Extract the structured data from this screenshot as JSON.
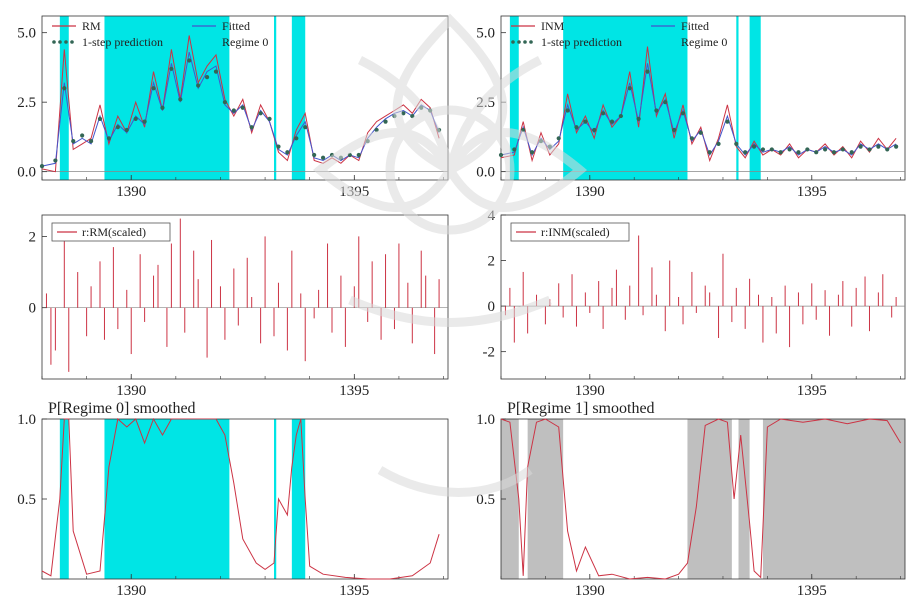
{
  "figure": {
    "colors": {
      "actual": "#cc3344",
      "fitted": "#4455cc",
      "prediction": "#336655",
      "regime_shade": "#00e5e5",
      "regime1_shade": "#bfbfbf",
      "residual": "#cc3344",
      "axis": "#333333"
    }
  },
  "chart_data": [
    {
      "id": "rm_fit",
      "type": "line",
      "legend": [
        "RM",
        "Fitted",
        "1-step prediction",
        "Regime 0"
      ],
      "legend_position": "top",
      "ylim": [
        -0.3,
        5.6
      ],
      "yticks": [
        "0.0",
        "2.5",
        "5.0"
      ],
      "xlim": [
        1388,
        1397.1
      ],
      "xticks": [
        "1390",
        "1395"
      ],
      "shaded_regime": 0,
      "regime_intervals": [
        [
          1388.4,
          1388.6
        ],
        [
          1389.4,
          1392.2
        ],
        [
          1393.2,
          1393.25
        ],
        [
          1393.6,
          1393.9
        ]
      ],
      "x": [
        1388.0,
        1388.3,
        1388.5,
        1388.7,
        1388.9,
        1389.1,
        1389.3,
        1389.5,
        1389.7,
        1389.9,
        1390.1,
        1390.3,
        1390.5,
        1390.7,
        1390.9,
        1391.1,
        1391.3,
        1391.5,
        1391.7,
        1391.9,
        1392.1,
        1392.3,
        1392.5,
        1392.7,
        1392.9,
        1393.1,
        1393.3,
        1393.5,
        1393.7,
        1393.9,
        1394.1,
        1394.3,
        1394.5,
        1394.7,
        1394.9,
        1395.1,
        1395.3,
        1395.5,
        1395.7,
        1395.9,
        1396.1,
        1396.3,
        1396.5,
        1396.7,
        1396.9
      ],
      "series": [
        {
          "name": "RM",
          "values": [
            0.1,
            0.0,
            4.4,
            0.8,
            1.0,
            1.2,
            2.4,
            1.0,
            2.0,
            1.4,
            2.5,
            1.6,
            3.6,
            2.2,
            4.4,
            2.6,
            4.9,
            3.2,
            3.8,
            4.2,
            2.6,
            2.0,
            2.6,
            1.4,
            2.4,
            1.8,
            0.7,
            0.4,
            1.5,
            2.1,
            0.4,
            0.3,
            0.5,
            0.3,
            0.6,
            0.4,
            1.4,
            1.8,
            2.0,
            2.2,
            2.4,
            2.1,
            2.6,
            2.3,
            1.2
          ]
        },
        {
          "name": "Fitted",
          "values": [
            0.2,
            0.3,
            3.2,
            1.0,
            1.2,
            1.0,
            2.0,
            1.1,
            1.7,
            1.4,
            2.0,
            1.7,
            3.2,
            2.2,
            3.9,
            2.5,
            4.3,
            3.0,
            3.6,
            3.8,
            2.4,
            2.1,
            2.4,
            1.5,
            2.2,
            1.8,
            0.8,
            0.6,
            1.3,
            1.8,
            0.5,
            0.4,
            0.6,
            0.4,
            0.6,
            0.5,
            1.2,
            1.6,
            1.9,
            2.1,
            2.2,
            2.0,
            2.4,
            2.2,
            1.4
          ]
        },
        {
          "name": "1-step prediction",
          "values": [
            0.2,
            0.4,
            3.0,
            1.1,
            1.3,
            1.1,
            1.9,
            1.2,
            1.6,
            1.5,
            1.9,
            1.8,
            3.0,
            2.3,
            3.7,
            2.6,
            4.0,
            3.1,
            3.4,
            3.6,
            2.5,
            2.2,
            2.3,
            1.6,
            2.1,
            1.9,
            0.9,
            0.7,
            1.2,
            1.6,
            0.6,
            0.5,
            0.6,
            0.5,
            0.6,
            0.6,
            1.1,
            1.5,
            1.8,
            2.0,
            2.1,
            2.0,
            2.3,
            2.2,
            1.5
          ]
        }
      ]
    },
    {
      "id": "inm_fit",
      "type": "line",
      "legend": [
        "INM",
        "Fitted",
        "1-step prediction",
        "Regime 0"
      ],
      "legend_position": "top",
      "ylim": [
        -0.3,
        5.6
      ],
      "yticks": [
        "0.0",
        "2.5",
        "5.0"
      ],
      "xlim": [
        1388,
        1397.1
      ],
      "xticks": [
        "1390",
        "1395"
      ],
      "shaded_regime": 0,
      "regime_intervals": [
        [
          1388.2,
          1388.4
        ],
        [
          1389.4,
          1392.2
        ],
        [
          1393.3,
          1393.35
        ],
        [
          1393.6,
          1393.85
        ]
      ],
      "x": [
        1388.0,
        1388.3,
        1388.5,
        1388.7,
        1388.9,
        1389.1,
        1389.3,
        1389.5,
        1389.7,
        1389.9,
        1390.1,
        1390.3,
        1390.5,
        1390.7,
        1390.9,
        1391.1,
        1391.3,
        1391.5,
        1391.7,
        1391.9,
        1392.1,
        1392.3,
        1392.5,
        1392.7,
        1392.9,
        1393.1,
        1393.3,
        1393.5,
        1393.7,
        1393.9,
        1394.1,
        1394.3,
        1394.5,
        1394.7,
        1394.9,
        1395.1,
        1395.3,
        1395.5,
        1395.7,
        1395.9,
        1396.1,
        1396.3,
        1396.5,
        1396.7,
        1396.9
      ],
      "series": [
        {
          "name": "INM",
          "values": [
            0.5,
            0.6,
            1.8,
            0.4,
            1.4,
            0.6,
            1.0,
            2.8,
            1.4,
            2.0,
            1.2,
            2.4,
            1.6,
            2.0,
            3.6,
            1.6,
            4.5,
            2.0,
            2.8,
            1.2,
            2.4,
            1.0,
            1.6,
            0.4,
            1.2,
            2.4,
            0.9,
            0.5,
            1.1,
            0.6,
            0.8,
            0.6,
            1.0,
            0.5,
            0.8,
            0.7,
            1.0,
            0.6,
            0.9,
            0.5,
            1.1,
            0.7,
            1.2,
            0.8,
            1.2
          ]
        },
        {
          "name": "Fitted",
          "values": [
            0.6,
            0.7,
            1.6,
            0.6,
            1.2,
            0.8,
            1.1,
            2.4,
            1.5,
            1.8,
            1.4,
            2.2,
            1.7,
            2.0,
            3.2,
            1.8,
            3.9,
            2.1,
            2.6,
            1.4,
            2.2,
            1.1,
            1.5,
            0.6,
            1.1,
            2.0,
            1.0,
            0.6,
            1.0,
            0.7,
            0.8,
            0.7,
            0.9,
            0.6,
            0.8,
            0.7,
            0.9,
            0.7,
            0.8,
            0.6,
            1.0,
            0.8,
            1.0,
            0.8,
            1.0
          ]
        },
        {
          "name": "1-step prediction",
          "values": [
            0.6,
            0.8,
            1.5,
            0.7,
            1.1,
            0.9,
            1.2,
            2.2,
            1.6,
            1.8,
            1.5,
            2.1,
            1.8,
            2.0,
            3.0,
            1.9,
            3.6,
            2.2,
            2.5,
            1.5,
            2.1,
            1.2,
            1.4,
            0.7,
            1.0,
            1.8,
            1.0,
            0.7,
            0.9,
            0.8,
            0.8,
            0.7,
            0.8,
            0.7,
            0.8,
            0.7,
            0.8,
            0.7,
            0.8,
            0.7,
            0.9,
            0.8,
            0.9,
            0.8,
            0.9
          ]
        }
      ]
    },
    {
      "id": "rm_resid",
      "type": "bar",
      "legend": [
        "r:RM(scaled)"
      ],
      "legend_position": "top-left",
      "ylim": [
        -2.0,
        2.6
      ],
      "yticks": [
        "0",
        "2"
      ],
      "xlim": [
        1388,
        1397.1
      ],
      "xticks": [
        "1390",
        "1395"
      ],
      "x": [
        1388.1,
        1388.2,
        1388.3,
        1388.5,
        1388.6,
        1388.8,
        1389.0,
        1389.1,
        1389.3,
        1389.4,
        1389.6,
        1389.7,
        1389.9,
        1390.0,
        1390.2,
        1390.3,
        1390.5,
        1390.6,
        1390.8,
        1390.9,
        1391.1,
        1391.2,
        1391.4,
        1391.5,
        1391.7,
        1391.8,
        1392.0,
        1392.1,
        1392.3,
        1392.4,
        1392.6,
        1392.7,
        1392.9,
        1393.0,
        1393.2,
        1393.3,
        1393.5,
        1393.6,
        1393.8,
        1393.9,
        1394.1,
        1394.2,
        1394.4,
        1394.5,
        1394.7,
        1394.8,
        1395.0,
        1395.1,
        1395.3,
        1395.4,
        1395.6,
        1395.7,
        1395.9,
        1396.0,
        1396.2,
        1396.3,
        1396.5,
        1396.6,
        1396.8,
        1396.9
      ],
      "values": [
        0.4,
        -1.6,
        -1.2,
        2.0,
        -1.8,
        1.0,
        -0.8,
        0.6,
        1.3,
        -0.9,
        1.7,
        -0.6,
        0.5,
        -1.3,
        1.5,
        -0.4,
        0.9,
        1.2,
        -1.1,
        1.8,
        2.5,
        -0.7,
        1.6,
        0.8,
        -1.4,
        1.9,
        0.6,
        -0.9,
        1.1,
        -0.5,
        1.4,
        0.3,
        -1.0,
        2.0,
        -0.8,
        0.7,
        -1.2,
        1.6,
        0.4,
        -1.5,
        -0.3,
        0.5,
        1.8,
        -0.7,
        0.9,
        -1.1,
        0.6,
        2.0,
        -0.4,
        1.3,
        -0.9,
        1.5,
        -0.6,
        1.8,
        0.7,
        -1.0,
        1.6,
        0.9,
        -1.3,
        0.8
      ]
    },
    {
      "id": "inm_resid",
      "type": "bar",
      "legend": [
        "r:INM(scaled)"
      ],
      "legend_position": "top-left",
      "ylim": [
        -3.2,
        4.0
      ],
      "yticks": [
        "-2",
        "0",
        "2",
        "4"
      ],
      "xlim": [
        1388,
        1397.1
      ],
      "xticks": [
        "1390",
        "1395"
      ],
      "x": [
        1388.1,
        1388.2,
        1388.3,
        1388.5,
        1388.6,
        1388.8,
        1389.0,
        1389.1,
        1389.3,
        1389.4,
        1389.6,
        1389.7,
        1389.9,
        1390.0,
        1390.2,
        1390.3,
        1390.5,
        1390.6,
        1390.8,
        1390.9,
        1391.1,
        1391.2,
        1391.4,
        1391.5,
        1391.7,
        1391.8,
        1392.0,
        1392.1,
        1392.3,
        1392.4,
        1392.6,
        1392.7,
        1392.9,
        1393.0,
        1393.2,
        1393.3,
        1393.5,
        1393.6,
        1393.8,
        1393.9,
        1394.1,
        1394.2,
        1394.4,
        1394.5,
        1394.7,
        1394.8,
        1395.0,
        1395.1,
        1395.3,
        1395.4,
        1395.6,
        1395.7,
        1395.9,
        1396.0,
        1396.2,
        1396.3,
        1396.5,
        1396.6,
        1396.8,
        1396.9
      ],
      "values": [
        -0.4,
        0.8,
        -1.6,
        1.5,
        -1.2,
        0.5,
        -0.8,
        0.3,
        1.0,
        -0.5,
        1.4,
        -0.9,
        0.6,
        -0.3,
        1.1,
        -1.0,
        0.8,
        1.6,
        -0.6,
        0.9,
        3.1,
        -0.4,
        1.7,
        0.5,
        -1.1,
        2.0,
        0.4,
        -0.8,
        1.5,
        -0.3,
        0.9,
        0.6,
        -1.4,
        2.3,
        -0.7,
        0.8,
        -1.0,
        1.2,
        0.5,
        -1.6,
        0.4,
        -1.2,
        0.9,
        -1.8,
        0.6,
        -0.8,
        1.0,
        -0.6,
        0.7,
        -1.3,
        0.5,
        1.1,
        -0.9,
        0.8,
        1.3,
        -1.1,
        0.6,
        1.4,
        -0.5,
        0.4
      ]
    },
    {
      "id": "p_regime0",
      "type": "area",
      "title": "P[Regime 0] smoothed",
      "ylim": [
        0,
        1.0
      ],
      "yticks": [
        "0.5",
        "1.0"
      ],
      "xlim": [
        1388,
        1397.1
      ],
      "xticks": [
        "1390",
        "1395"
      ],
      "shade": "regime_shade",
      "regime_intervals": [
        [
          1388.4,
          1388.6
        ],
        [
          1389.4,
          1392.2
        ],
        [
          1393.2,
          1393.25
        ],
        [
          1393.6,
          1393.9
        ]
      ],
      "x": [
        1388.0,
        1388.2,
        1388.4,
        1388.5,
        1388.6,
        1388.7,
        1389.0,
        1389.3,
        1389.5,
        1389.7,
        1389.9,
        1390.1,
        1390.3,
        1390.5,
        1390.7,
        1390.9,
        1391.1,
        1391.3,
        1391.5,
        1391.7,
        1391.9,
        1392.1,
        1392.3,
        1392.5,
        1392.8,
        1393.0,
        1393.2,
        1393.3,
        1393.5,
        1393.6,
        1393.7,
        1393.8,
        1393.9,
        1394.0,
        1394.3,
        1394.8,
        1395.3,
        1395.8,
        1396.3,
        1396.7,
        1396.9
      ],
      "values": [
        0.05,
        0.02,
        0.5,
        1.0,
        1.0,
        0.3,
        0.03,
        0.05,
        0.7,
        1.0,
        0.95,
        1.0,
        0.85,
        1.0,
        0.9,
        1.0,
        1.0,
        1.0,
        1.0,
        1.0,
        1.0,
        0.9,
        0.6,
        0.25,
        0.1,
        0.06,
        0.1,
        0.5,
        0.4,
        0.7,
        0.9,
        1.0,
        0.5,
        0.08,
        0.03,
        0.01,
        0.0,
        0.0,
        0.02,
        0.1,
        0.28
      ]
    },
    {
      "id": "p_regime1",
      "type": "area",
      "title": "P[Regime 1] smoothed",
      "ylim": [
        0,
        1.0
      ],
      "yticks": [
        "0.5",
        "1.0"
      ],
      "xlim": [
        1388,
        1397.1
      ],
      "xticks": [
        "1390",
        "1395"
      ],
      "shade": "regime1_shade",
      "regime_intervals": [
        [
          1388.0,
          1388.4
        ],
        [
          1388.6,
          1389.4
        ],
        [
          1392.2,
          1393.2
        ],
        [
          1393.35,
          1393.6
        ],
        [
          1393.9,
          1397.1
        ]
      ],
      "x": [
        1388.0,
        1388.2,
        1388.4,
        1388.5,
        1388.6,
        1388.8,
        1389.0,
        1389.3,
        1389.5,
        1389.7,
        1389.9,
        1390.2,
        1390.5,
        1390.9,
        1391.3,
        1391.7,
        1392.0,
        1392.2,
        1392.4,
        1392.6,
        1392.9,
        1393.1,
        1393.25,
        1393.4,
        1393.6,
        1393.7,
        1393.85,
        1394.0,
        1394.3,
        1394.8,
        1395.3,
        1395.8,
        1396.3,
        1396.7,
        1397.0
      ],
      "values": [
        1.0,
        0.98,
        0.5,
        0.02,
        0.7,
        0.98,
        1.0,
        0.95,
        0.3,
        0.05,
        0.2,
        0.02,
        0.03,
        0.0,
        0.01,
        0.0,
        0.03,
        0.1,
        0.45,
        0.96,
        1.0,
        0.98,
        0.5,
        0.9,
        0.35,
        0.05,
        0.01,
        0.95,
        1.0,
        0.98,
        1.0,
        0.97,
        1.0,
        0.99,
        0.85
      ]
    }
  ]
}
